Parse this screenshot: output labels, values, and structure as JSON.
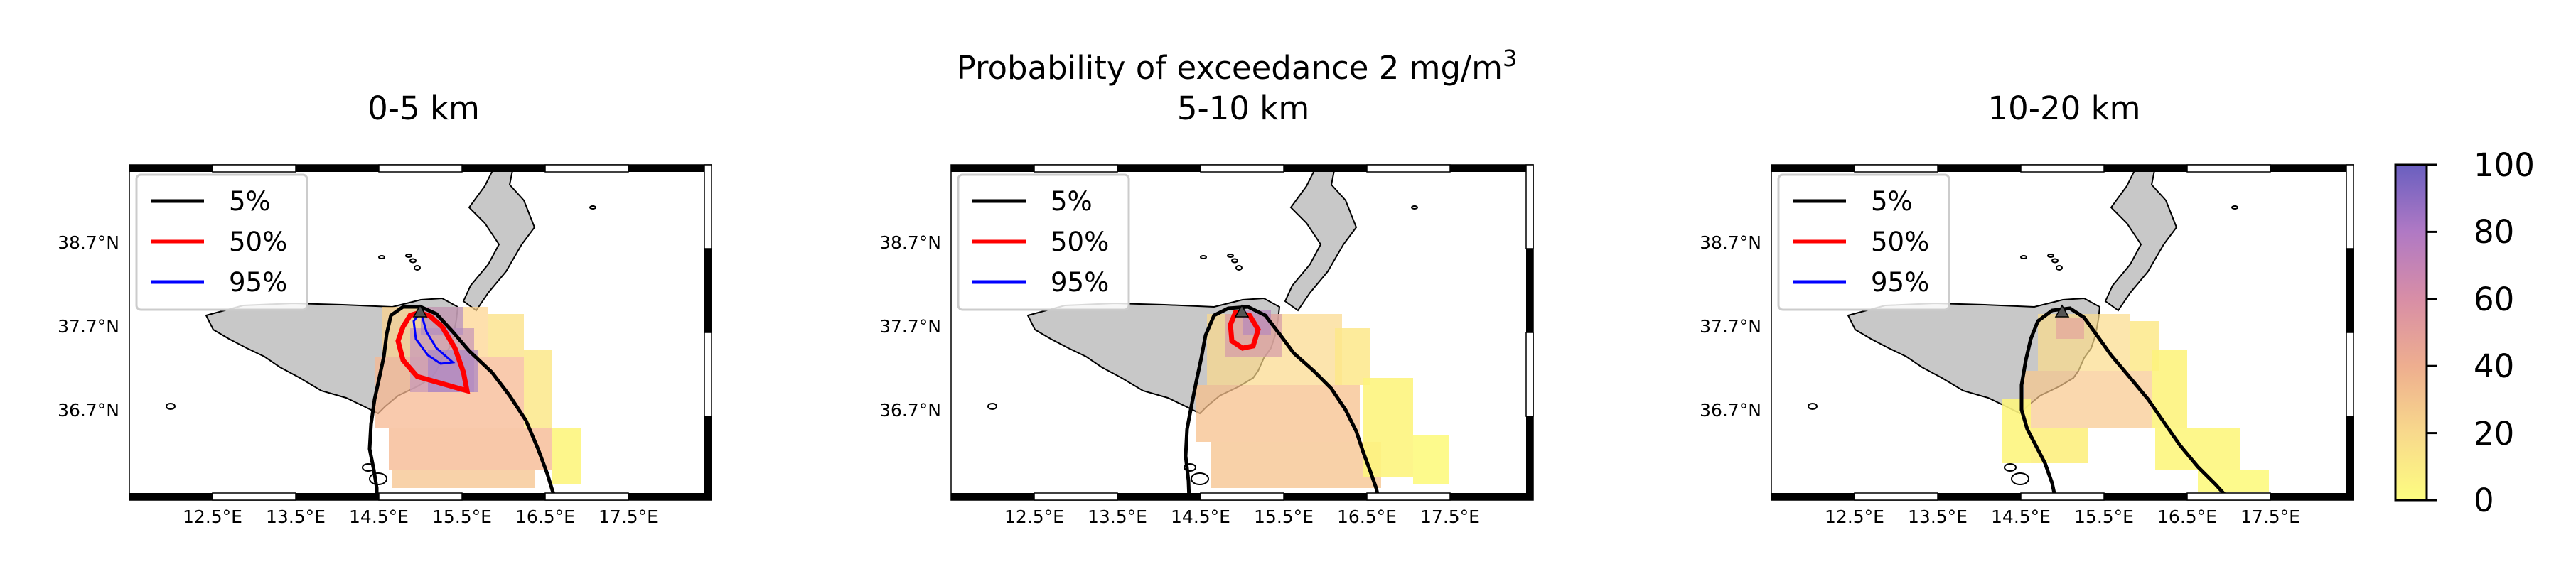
{
  "suptitle": {
    "text": "Probability of exceedance 2 mg/m",
    "superscript": "3"
  },
  "panels": [
    {
      "title": "0-5 km",
      "contours": [
        {
          "level": "5%",
          "color": "#000000"
        },
        {
          "level": "50%",
          "color": "#ff0000"
        },
        {
          "level": "95%",
          "color": "#0000ff"
        }
      ]
    },
    {
      "title": "5-10 km",
      "contours": [
        {
          "level": "5%",
          "color": "#000000"
        },
        {
          "level": "50%",
          "color": "#ff0000"
        },
        {
          "level": "95%",
          "color": "#0000ff"
        }
      ]
    },
    {
      "title": "10-20 km",
      "contours": [
        {
          "level": "5%",
          "color": "#000000"
        },
        {
          "level": "50%",
          "color": "#ff0000"
        },
        {
          "level": "95%",
          "color": "#0000ff"
        }
      ]
    }
  ],
  "map_axes": {
    "lon_ticks": [
      "12.5°E",
      "13.5°E",
      "14.5°E",
      "15.5°E",
      "16.5°E",
      "17.5°E"
    ],
    "lat_ticks": [
      "38.7°N",
      "37.7°N",
      "36.7°N"
    ]
  },
  "legend_entries": [
    "5%",
    "50%",
    "95%"
  ],
  "colorbar": {
    "ticks": [
      "0",
      "20",
      "40",
      "60",
      "80",
      "100"
    ],
    "min": 0,
    "max": 100,
    "colormap": "plasma_r (semi-transparent)"
  },
  "colors": {
    "land": "#c8c8c8",
    "contour_5": "#000000",
    "contour_50": "#ff0000",
    "contour_95": "#0000ff",
    "vent_marker": "#555555"
  }
}
